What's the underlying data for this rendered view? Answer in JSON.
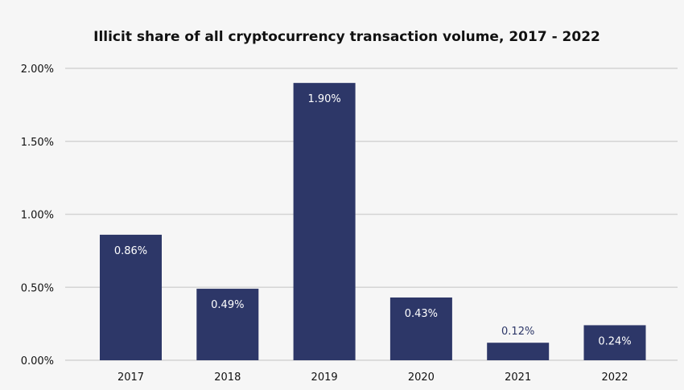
{
  "chart_data": {
    "type": "bar",
    "title": "Illicit share of all cryptocurrency transaction volume, 2017 - 2022",
    "categories": [
      "2017",
      "2018",
      "2019",
      "2020",
      "2021",
      "2022"
    ],
    "values": [
      0.86,
      0.49,
      1.9,
      0.43,
      0.12,
      0.24
    ],
    "data_labels": [
      "0.86%",
      "0.49%",
      "1.90%",
      "0.43%",
      "0.12%",
      "0.24%"
    ],
    "xlabel": "",
    "ylabel": "",
    "ylim": [
      0,
      2.0
    ],
    "yticks": [
      0,
      0.5,
      1.0,
      1.5,
      2.0
    ],
    "ytick_labels": [
      "0.00%",
      "0.50%",
      "1.00%",
      "1.50%",
      "2.00%"
    ],
    "grid": true,
    "legend": "none",
    "colors": {
      "bar": "#2d3768",
      "grid": "#d4d4d4",
      "background": "#f6f6f6"
    }
  }
}
